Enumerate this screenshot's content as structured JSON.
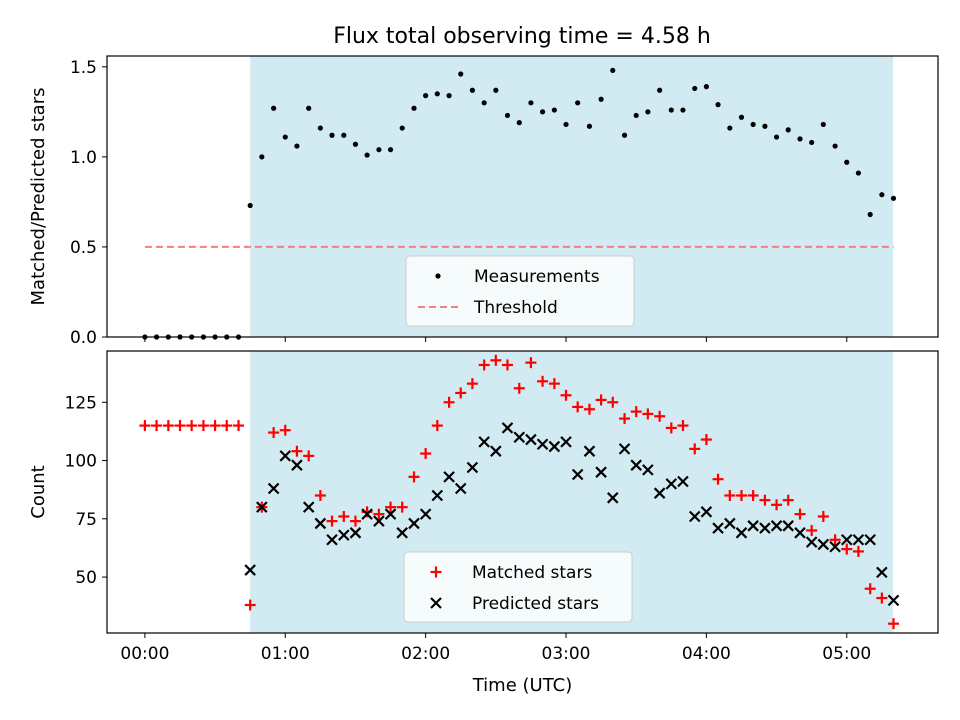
{
  "chart_data": [
    {
      "type": "scatter",
      "title": "Flux total observing time = 4.58 h",
      "xlabel": "",
      "ylabel": "Matched/Predicted stars",
      "ylim": [
        0,
        1.56
      ],
      "yticks": [
        "0.0",
        "0.5",
        "1.0",
        "1.5"
      ],
      "ytick_values": [
        0,
        0.5,
        1.0,
        1.5
      ],
      "x_unit": "hours since 00:00",
      "xlim": [
        -0.27,
        5.65
      ],
      "shaded_span": [
        0.75,
        5.33
      ],
      "shade_color": "#add8e6",
      "legend_position": "lower center",
      "series": [
        {
          "name": "Measurements",
          "marker": "dot",
          "color": "#000000",
          "x": [
            0,
            0.083,
            0.167,
            0.25,
            0.333,
            0.417,
            0.5,
            0.583,
            0.667,
            0.75,
            0.833,
            0.917,
            1.0,
            1.083,
            1.167,
            1.25,
            1.333,
            1.417,
            1.5,
            1.583,
            1.667,
            1.75,
            1.833,
            1.917,
            2.0,
            2.083,
            2.167,
            2.25,
            2.333,
            2.417,
            2.5,
            2.583,
            2.667,
            2.75,
            2.833,
            2.917,
            3.0,
            3.083,
            3.167,
            3.25,
            3.333,
            3.417,
            3.5,
            3.583,
            3.667,
            3.75,
            3.833,
            3.917,
            4.0,
            4.083,
            4.167,
            4.25,
            4.333,
            4.417,
            4.5,
            4.583,
            4.667,
            4.75,
            4.833,
            4.917,
            5.0,
            5.083,
            5.167,
            5.25,
            5.333
          ],
          "y": [
            0,
            0,
            0,
            0,
            0,
            0,
            0,
            0,
            0,
            0.73,
            1.0,
            1.27,
            1.11,
            1.06,
            1.27,
            1.16,
            1.12,
            1.12,
            1.07,
            1.01,
            1.04,
            1.04,
            1.16,
            1.27,
            1.34,
            1.35,
            1.34,
            1.46,
            1.37,
            1.3,
            1.37,
            1.23,
            1.19,
            1.3,
            1.25,
            1.26,
            1.18,
            1.3,
            1.17,
            1.32,
            1.48,
            1.12,
            1.23,
            1.25,
            1.37,
            1.26,
            1.26,
            1.38,
            1.39,
            1.29,
            1.16,
            1.22,
            1.18,
            1.17,
            1.11,
            1.15,
            1.1,
            1.08,
            1.18,
            1.06,
            0.97,
            0.91,
            0.68,
            0.79,
            0.77
          ]
        },
        {
          "name": "Threshold",
          "marker": "dashed-line",
          "color": "#f08080",
          "x": [
            0,
            5.333
          ],
          "y": [
            0.5,
            0.5
          ]
        }
      ]
    },
    {
      "type": "scatter",
      "title": "",
      "xlabel": "Time (UTC)",
      "ylabel": "Count",
      "ylim": [
        26,
        147
      ],
      "yticks": [
        "50",
        "75",
        "100",
        "125"
      ],
      "ytick_values": [
        50,
        75,
        100,
        125
      ],
      "x_unit": "hours since 00:00",
      "xlim": [
        -0.27,
        5.65
      ],
      "xticks": [
        "00:00",
        "01:00",
        "02:00",
        "03:00",
        "04:00",
        "05:00"
      ],
      "xtick_values": [
        0,
        1,
        2,
        3,
        4,
        5
      ],
      "shaded_span": [
        0.75,
        5.33
      ],
      "shade_color": "#add8e6",
      "legend_position": "lower center",
      "series": [
        {
          "name": "Matched stars",
          "marker": "plus",
          "color": "#ff0000",
          "x": [
            0,
            0.083,
            0.167,
            0.25,
            0.333,
            0.417,
            0.5,
            0.583,
            0.667,
            0.75,
            0.833,
            0.917,
            1.0,
            1.083,
            1.167,
            1.25,
            1.333,
            1.417,
            1.5,
            1.583,
            1.667,
            1.75,
            1.833,
            1.917,
            2.0,
            2.083,
            2.167,
            2.25,
            2.333,
            2.417,
            2.5,
            2.583,
            2.667,
            2.75,
            2.833,
            2.917,
            3.0,
            3.083,
            3.167,
            3.25,
            3.333,
            3.417,
            3.5,
            3.583,
            3.667,
            3.75,
            3.833,
            3.917,
            4.0,
            4.083,
            4.167,
            4.25,
            4.333,
            4.417,
            4.5,
            4.583,
            4.667,
            4.75,
            4.833,
            4.917,
            5.0,
            5.083,
            5.167,
            5.25,
            5.333
          ],
          "y": [
            115,
            115,
            115,
            115,
            115,
            115,
            115,
            115,
            115,
            38,
            80,
            112,
            113,
            104,
            102,
            85,
            74,
            76,
            74,
            78,
            77,
            80,
            80,
            93,
            103,
            115,
            125,
            129,
            133,
            141,
            143,
            141,
            131,
            142,
            134,
            133,
            128,
            123,
            122,
            126,
            125,
            118,
            121,
            120,
            119,
            114,
            115,
            105,
            109,
            92,
            85,
            85,
            85,
            83,
            81,
            83,
            77,
            70,
            76,
            66,
            62,
            61,
            45,
            41,
            30
          ]
        },
        {
          "name": "Predicted stars",
          "marker": "x",
          "color": "#000000",
          "x": [
            0.75,
            0.833,
            0.917,
            1.0,
            1.083,
            1.167,
            1.25,
            1.333,
            1.417,
            1.5,
            1.583,
            1.667,
            1.75,
            1.833,
            1.917,
            2.0,
            2.083,
            2.167,
            2.25,
            2.333,
            2.417,
            2.5,
            2.583,
            2.667,
            2.75,
            2.833,
            2.917,
            3.0,
            3.083,
            3.167,
            3.25,
            3.333,
            3.417,
            3.5,
            3.583,
            3.667,
            3.75,
            3.833,
            3.917,
            4.0,
            4.083,
            4.167,
            4.25,
            4.333,
            4.417,
            4.5,
            4.583,
            4.667,
            4.75,
            4.833,
            4.917,
            5.0,
            5.083,
            5.167,
            5.25,
            5.333
          ],
          "y": [
            53,
            80,
            88,
            102,
            98,
            80,
            73,
            66,
            68,
            69,
            77,
            74,
            77,
            69,
            73,
            77,
            85,
            93,
            88,
            97,
            108,
            104,
            114,
            110,
            109,
            107,
            106,
            108,
            94,
            104,
            95,
            84,
            105,
            98,
            96,
            86,
            90,
            91,
            76,
            78,
            71,
            73,
            69,
            72,
            71,
            72,
            72,
            69,
            65,
            64,
            63,
            66,
            66,
            66,
            52,
            40
          ]
        }
      ]
    }
  ]
}
